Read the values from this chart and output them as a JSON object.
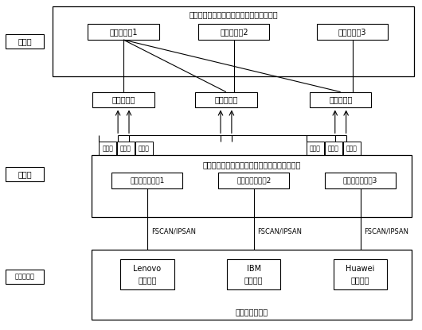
{
  "title": "终端服务器均内置有相同的存储虚拟化系统",
  "gateway_title": "存储网关服务器均内置有相同的存储虚拟化系统",
  "layer_labels": [
    "服务层",
    "网关层",
    "基础设施层"
  ],
  "terminal_servers": [
    "终端服务器1",
    "终端服务器2",
    "终端服务器3"
  ],
  "storage_types": [
    "共享式存储",
    "共享式存储",
    "分布式存储"
  ],
  "gateway_servers": [
    "存储网关服务器1",
    "存储网关服务器2",
    "存储网关服务器3"
  ],
  "storage_devices": [
    [
      "Lenovo",
      "存储设备"
    ],
    [
      "IBM",
      "存储设备"
    ],
    [
      "Huawei",
      "存储设备"
    ]
  ],
  "bottom_label": "各异构存储设备",
  "expand_labels": [
    "扩展用",
    "共享式",
    "分布式"
  ],
  "fc_label": "FSCAN/IPSAN",
  "bg_color": "#ffffff"
}
